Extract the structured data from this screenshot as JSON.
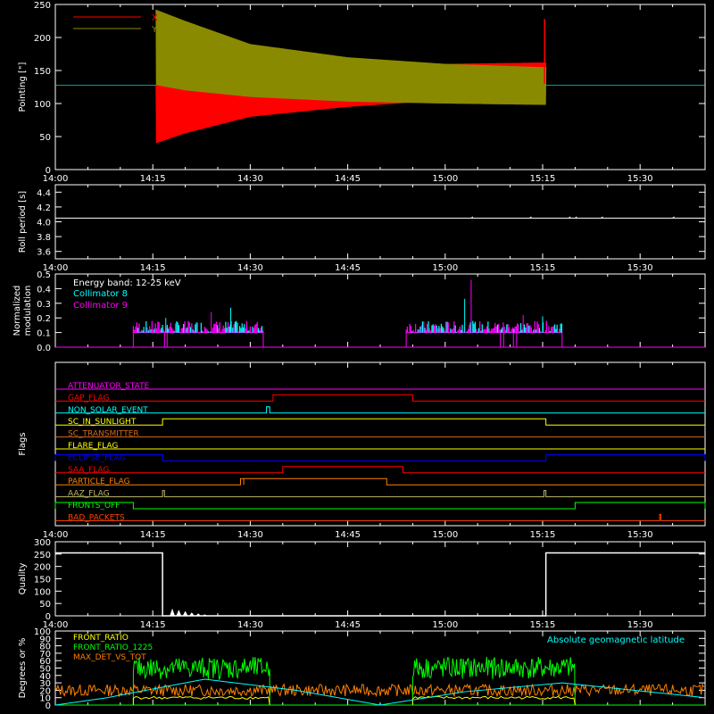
{
  "time_axis": {
    "start_minutes": 0,
    "end_minutes": 100,
    "tick_labels": [
      "14:00",
      "14:15",
      "14:30",
      "14:45",
      "15:00",
      "15:15",
      "15:30"
    ],
    "tick_values": [
      0,
      15,
      30,
      45,
      60,
      75,
      90
    ]
  },
  "colors": {
    "background": "#000000",
    "axes": "#ffffff",
    "red": "#ff0000",
    "olive": "#8b8b00",
    "cyan": "#00ffff",
    "magenta": "#ff00ff",
    "yellow": "#ffff00",
    "green": "#00ff00",
    "orange": "#ff8000",
    "blue": "#0000ff",
    "orangered": "#ff4500",
    "sienna": "#d2691e",
    "khaki": "#bdb76b"
  },
  "chart_data": [
    {
      "id": "pointing",
      "type": "line",
      "ylabel": "Pointing [\"]",
      "ylim": [
        0,
        250
      ],
      "yticks": [
        0,
        50,
        100,
        150,
        200,
        250
      ],
      "legend": [
        "X",
        "Y"
      ],
      "legend_position": "top-left",
      "series": [
        {
          "name": "X",
          "color": "red",
          "baseline": 128,
          "active_range": [
            15.5,
            75.5
          ],
          "x": [
            15.5,
            20,
            30,
            45,
            60,
            75
          ],
          "upper": [
            128,
            135,
            148,
            155,
            160,
            162
          ],
          "lower": [
            40,
            55,
            80,
            95,
            105,
            110
          ]
        },
        {
          "name": "Y",
          "color": "olive",
          "baseline": 128,
          "active_range": [
            15.5,
            75.5
          ],
          "x": [
            15.5,
            20,
            30,
            45,
            60,
            75
          ],
          "upper": [
            242,
            225,
            190,
            170,
            160,
            155
          ],
          "lower": [
            128,
            120,
            110,
            103,
            100,
            98
          ]
        }
      ]
    },
    {
      "id": "roll",
      "type": "line",
      "ylabel": "Roll period [s]",
      "ylim": [
        3.5,
        4.5
      ],
      "yticks": [
        3.6,
        3.8,
        4.0,
        4.2,
        4.4
      ],
      "series": [
        {
          "name": "",
          "color": "axes",
          "constant": 4.05
        }
      ]
    },
    {
      "id": "modulation",
      "type": "bar",
      "ylabel": "Normalized modulation",
      "ylim": [
        0,
        0.5
      ],
      "yticks": [
        0.0,
        0.1,
        0.2,
        0.3,
        0.4,
        0.5
      ],
      "legend_title": "Energy band: 12-25 keV",
      "legend": [
        "Collimator 8",
        "Collimator 9"
      ],
      "legend_position": "top-left",
      "active_ranges": [
        [
          12,
          32
        ],
        [
          54,
          78
        ]
      ],
      "baseline_level": 0.1,
      "typical_max": 0.15,
      "peaks": [
        {
          "x": 17,
          "y": 0.2
        },
        {
          "x": 24,
          "y": 0.24
        },
        {
          "x": 27,
          "y": 0.27
        },
        {
          "x": 64,
          "y": 0.46
        },
        {
          "x": 63,
          "y": 0.33
        },
        {
          "x": 72,
          "y": 0.22
        },
        {
          "x": 75,
          "y": 0.21
        }
      ],
      "series": [
        {
          "name": "Collimator 8",
          "color": "cyan"
        },
        {
          "name": "Collimator 9",
          "color": "magenta"
        }
      ]
    },
    {
      "id": "flags",
      "type": "line",
      "ylabel": "Flags",
      "flags": [
        {
          "name": "ATTENUATOR_STATE",
          "color": "magenta",
          "high": []
        },
        {
          "name": "GAP_FLAG",
          "color": "red",
          "high": [
            [
              33.5,
              55
            ]
          ]
        },
        {
          "name": "NON_SOLAR_EVENT",
          "color": "cyan",
          "high": [
            [
              32.5,
              33
            ]
          ]
        },
        {
          "name": "SC_IN_SUNLIGHT",
          "color": "yellow",
          "high": [
            [
              16.5,
              75.5
            ]
          ]
        },
        {
          "name": "SC_TRANSMITTER",
          "color": "sienna",
          "high": []
        },
        {
          "name": "FLARE_FLAG",
          "color": "yellow",
          "high": []
        },
        {
          "name": "ECLIPSE_FLAG",
          "color": "blue",
          "high": [
            [
              0,
              16.5
            ],
            [
              75.5,
              100
            ]
          ]
        },
        {
          "name": "SAA_FLAG",
          "color": "red",
          "high": [
            [
              35,
              53.5
            ]
          ]
        },
        {
          "name": "PARTICLE_FLAG",
          "color": "orange",
          "high": [
            [
              28.5,
              29
            ],
            [
              29,
              51
            ]
          ]
        },
        {
          "name": "AAZ_FLAG",
          "color": "khaki",
          "high": [
            [
              16.5,
              16.8
            ],
            [
              75.2,
              75.5
            ]
          ]
        },
        {
          "name": "FRONTS_OFF",
          "color": "green",
          "high": [
            [
              0,
              12
            ],
            [
              80,
              100
            ]
          ]
        },
        {
          "name": "BAD_PACKETS",
          "color": "orangered",
          "high": [
            [
              93,
              93.2
            ]
          ]
        }
      ]
    },
    {
      "id": "quality",
      "type": "line",
      "ylabel": "Quality",
      "ylim": [
        0,
        300
      ],
      "yticks": [
        0,
        50,
        100,
        150,
        200,
        250,
        300
      ],
      "series": [
        {
          "name": "",
          "color": "axes",
          "x": [
            0,
            16.5,
            16.5,
            75.5,
            75.5,
            100
          ],
          "y": [
            255,
            255,
            0,
            0,
            255,
            255
          ]
        }
      ],
      "decay_bursts": [
        {
          "x": 18,
          "y": 30
        },
        {
          "x": 19,
          "y": 25
        },
        {
          "x": 20,
          "y": 20
        },
        {
          "x": 21,
          "y": 14
        },
        {
          "x": 22,
          "y": 10
        },
        {
          "x": 23,
          "y": 6
        }
      ]
    },
    {
      "id": "ratios",
      "type": "line",
      "ylabel": "Degrees or %",
      "ylim": [
        0,
        100
      ],
      "yticks": [
        0,
        10,
        20,
        30,
        40,
        50,
        60,
        70,
        80,
        90,
        100
      ],
      "legend": [
        "FRONT_RATIO",
        "FRONT_RATIO_1225",
        "MAX_DET_VS_TOT"
      ],
      "legend_position": "top-left",
      "annotation": "Absolute geomagnetic latitude",
      "series": [
        {
          "name": "FRONT_RATIO",
          "color": "yellow",
          "active_ranges": [
            [
              12,
              33
            ],
            [
              55,
              80
            ]
          ],
          "level": 10
        },
        {
          "name": "FRONT_RATIO_1225",
          "color": "green",
          "active_ranges": [
            [
              12,
              33
            ],
            [
              55,
              80
            ]
          ],
          "level": 50,
          "spread": 15
        },
        {
          "name": "MAX_DET_VS_TOT",
          "color": "orange",
          "level": 20,
          "spread": 8
        },
        {
          "name": "Absolute geomagnetic latitude",
          "color": "cyan",
          "x": [
            0,
            8,
            23,
            37,
            50,
            63,
            78,
            100
          ],
          "y": [
            0,
            10,
            35,
            20,
            0,
            18,
            30,
            10
          ]
        }
      ]
    }
  ]
}
